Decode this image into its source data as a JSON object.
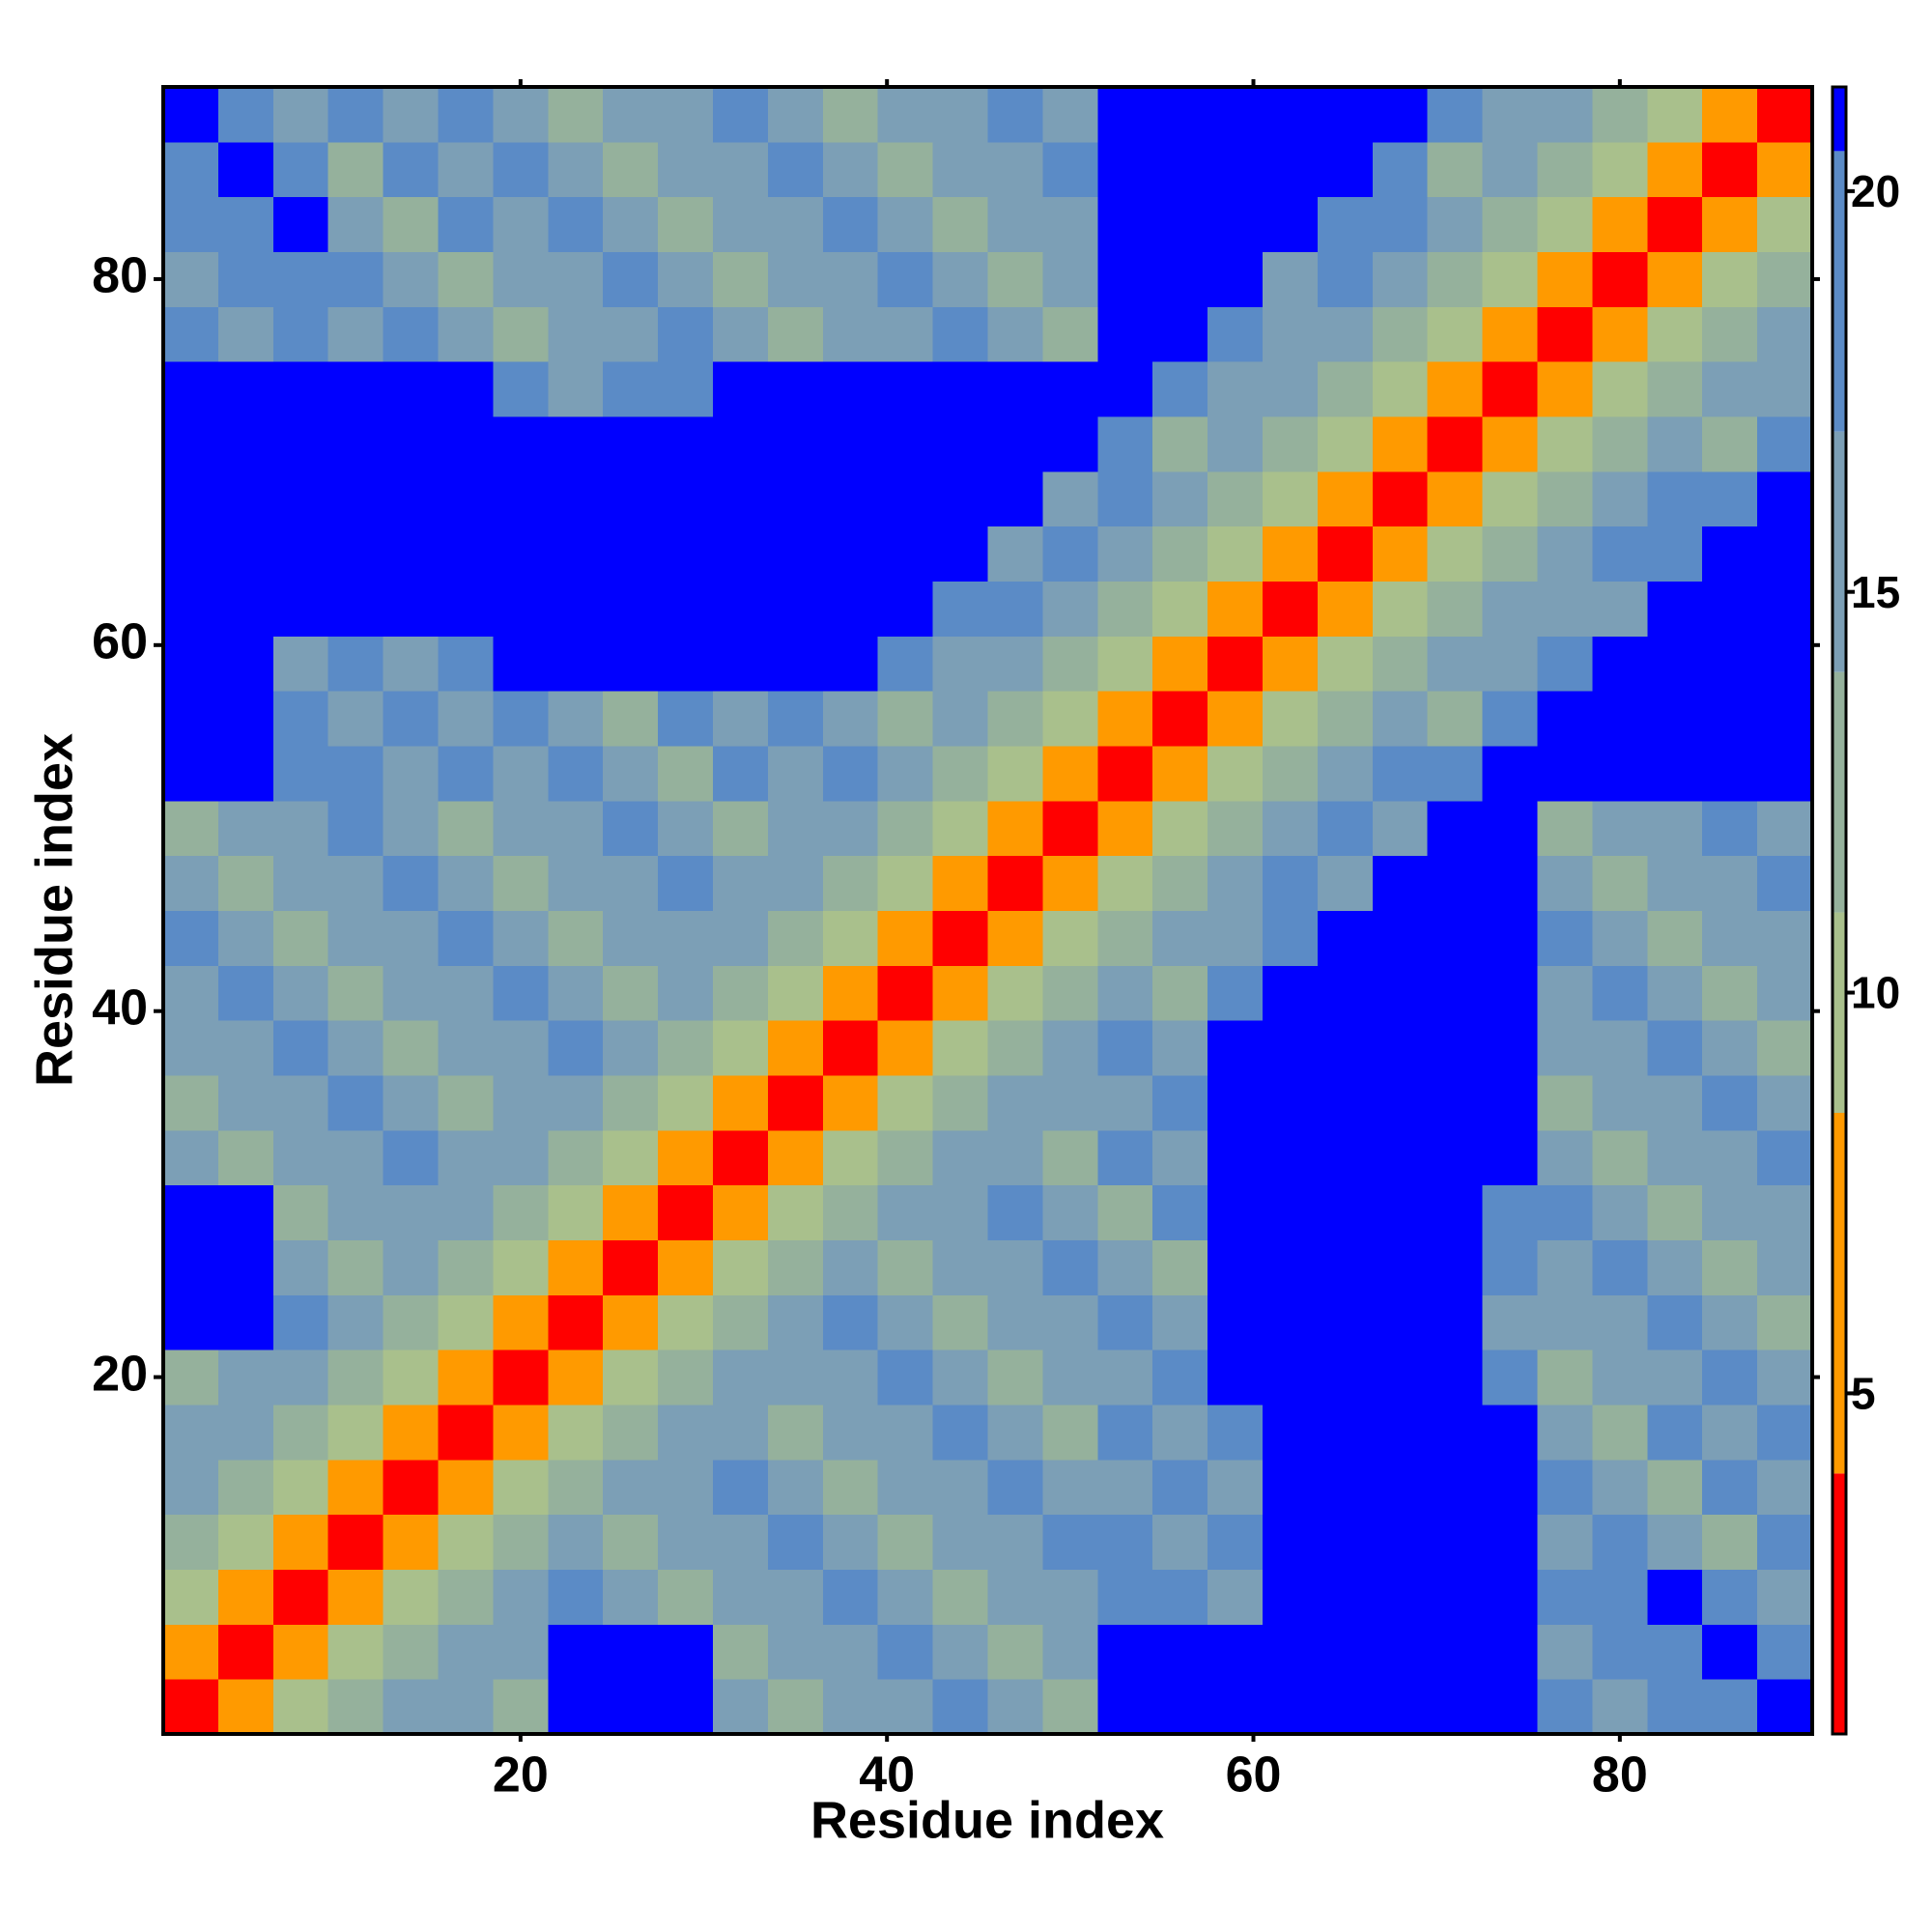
{
  "chart_data": {
    "type": "heatmap",
    "xlabel": "Residue index",
    "ylabel": "Residue index",
    "x": [
      2,
      5,
      8,
      11,
      14,
      17,
      20,
      23,
      26,
      29,
      32,
      35,
      38,
      41,
      44,
      47,
      50,
      53,
      56,
      59,
      62,
      65,
      68,
      71,
      74,
      77,
      80,
      83,
      86,
      89
    ],
    "y": [
      2,
      5,
      8,
      11,
      14,
      17,
      20,
      23,
      26,
      29,
      32,
      35,
      38,
      41,
      44,
      47,
      50,
      53,
      56,
      59,
      62,
      65,
      68,
      71,
      74,
      77,
      80,
      83,
      86,
      89
    ],
    "xlim": [
      0.5,
      90.5
    ],
    "ylim": [
      0.5,
      90.5
    ],
    "xticks": [
      20,
      40,
      60,
      80
    ],
    "yticks": [
      20,
      40,
      60,
      80
    ],
    "zlim": [
      0.75,
      21.3
    ],
    "zticks": [
      5,
      10,
      15,
      20
    ],
    "colorscale": [
      {
        "max": 4,
        "color": "#ff0000"
      },
      {
        "max": 8.5,
        "color": "#ff9a00"
      },
      {
        "max": 11,
        "color": "#a9c08c"
      },
      {
        "max": 14,
        "color": "#95b19c"
      },
      {
        "max": 17,
        "color": "#7c9fb6"
      },
      {
        "max": 20.5,
        "color": "#5b8bc6"
      },
      {
        "max": 21.3,
        "color": "#0000ff"
      }
    ],
    "z": [
      [
        2,
        6,
        9,
        12,
        14,
        15,
        12,
        21,
        21,
        21,
        15,
        12,
        16,
        14,
        17,
        15,
        12,
        21,
        21,
        21,
        21,
        21,
        21,
        21,
        21,
        19,
        16,
        20,
        18,
        21
      ],
      [
        6,
        2,
        6,
        9,
        12,
        14,
        16,
        21,
        21,
        21,
        12,
        16,
        14,
        17,
        15,
        12,
        16,
        21,
        21,
        21,
        21,
        21,
        21,
        21,
        21,
        16,
        20,
        18,
        21,
        19
      ],
      [
        9,
        6,
        2,
        6,
        9,
        12,
        14,
        17,
        15,
        12,
        16,
        14,
        17,
        15,
        12,
        16,
        14,
        19,
        17,
        14,
        21,
        21,
        21,
        21,
        21,
        20,
        18,
        21,
        19,
        16
      ],
      [
        12,
        9,
        6,
        2,
        6,
        9,
        12,
        14,
        12,
        16,
        14,
        17,
        15,
        12,
        16,
        14,
        17,
        17,
        14,
        18,
        21,
        21,
        21,
        21,
        21,
        15,
        18,
        16,
        13,
        17
      ],
      [
        14,
        12,
        9,
        6,
        2,
        6,
        9,
        12,
        14,
        14,
        17,
        15,
        12,
        16,
        14,
        17,
        15,
        14,
        18,
        16,
        21,
        21,
        21,
        21,
        21,
        18,
        16,
        13,
        17,
        15
      ],
      [
        15,
        14,
        12,
        9,
        6,
        2,
        6,
        9,
        12,
        14,
        15,
        12,
        16,
        14,
        17,
        15,
        12,
        18,
        16,
        19,
        21,
        21,
        21,
        21,
        21,
        16,
        13,
        17,
        15,
        18
      ],
      [
        12,
        16,
        14,
        12,
        9,
        6,
        2,
        6,
        9,
        12,
        14,
        16,
        14,
        17,
        15,
        12,
        16,
        15,
        18,
        21,
        21,
        21,
        21,
        21,
        18,
        12,
        16,
        14,
        17,
        15
      ],
      [
        21,
        21,
        17,
        14,
        12,
        9,
        6,
        2,
        6,
        9,
        12,
        14,
        17,
        15,
        12,
        16,
        14,
        18,
        16,
        21,
        21,
        21,
        21,
        21,
        15,
        16,
        14,
        17,
        15,
        12
      ],
      [
        21,
        21,
        15,
        12,
        14,
        12,
        9,
        6,
        2,
        6,
        9,
        12,
        14,
        12,
        16,
        14,
        17,
        16,
        13,
        21,
        21,
        21,
        21,
        21,
        19,
        14,
        17,
        15,
        12,
        16
      ],
      [
        21,
        21,
        12,
        16,
        14,
        14,
        12,
        9,
        6,
        2,
        6,
        9,
        12,
        14,
        14,
        17,
        15,
        13,
        17,
        21,
        21,
        21,
        21,
        21,
        17,
        17,
        15,
        12,
        16,
        14
      ],
      [
        15,
        12,
        16,
        14,
        17,
        15,
        14,
        12,
        9,
        6,
        2,
        6,
        9,
        12,
        14,
        15,
        12,
        17,
        15,
        21,
        21,
        21,
        21,
        21,
        21,
        15,
        12,
        16,
        14,
        17
      ],
      [
        12,
        16,
        14,
        17,
        15,
        12,
        16,
        14,
        12,
        9,
        6,
        2,
        6,
        9,
        12,
        14,
        16,
        15,
        18,
        21,
        21,
        21,
        21,
        21,
        21,
        12,
        16,
        14,
        17,
        15
      ],
      [
        16,
        14,
        17,
        15,
        12,
        16,
        14,
        17,
        14,
        12,
        9,
        6,
        2,
        6,
        9,
        12,
        14,
        18,
        16,
        21,
        21,
        21,
        21,
        21,
        21,
        16,
        14,
        17,
        15,
        12
      ],
      [
        14,
        17,
        15,
        12,
        16,
        14,
        17,
        15,
        12,
        14,
        12,
        9,
        6,
        2,
        6,
        9,
        12,
        14,
        13,
        18,
        21,
        21,
        21,
        21,
        21,
        14,
        17,
        15,
        12,
        16
      ],
      [
        17,
        15,
        12,
        16,
        14,
        17,
        15,
        12,
        16,
        14,
        14,
        12,
        9,
        6,
        2,
        6,
        9,
        12,
        14,
        16,
        19,
        21,
        21,
        21,
        21,
        17,
        15,
        12,
        16,
        14
      ],
      [
        15,
        12,
        16,
        14,
        17,
        15,
        12,
        16,
        14,
        17,
        15,
        14,
        12,
        9,
        6,
        2,
        6,
        9,
        12,
        14,
        17,
        14,
        21,
        21,
        21,
        15,
        12,
        16,
        14,
        17
      ],
      [
        12,
        16,
        14,
        17,
        15,
        12,
        16,
        14,
        17,
        15,
        12,
        16,
        14,
        12,
        9,
        6,
        2,
        6,
        9,
        12,
        14,
        18,
        16,
        21,
        21,
        12,
        16,
        14,
        17,
        15
      ],
      [
        21,
        21,
        19,
        17,
        14,
        18,
        15,
        18,
        16,
        13,
        17,
        15,
        18,
        14,
        12,
        9,
        6,
        2,
        6,
        9,
        12,
        14,
        18,
        18,
        21,
        21,
        21,
        21,
        21,
        21
      ],
      [
        21,
        21,
        17,
        14,
        18,
        16,
        18,
        16,
        13,
        17,
        15,
        18,
        16,
        13,
        14,
        12,
        9,
        6,
        2,
        6,
        9,
        12,
        14,
        13,
        19,
        21,
        21,
        21,
        21,
        21
      ],
      [
        21,
        21,
        14,
        18,
        16,
        19,
        21,
        21,
        21,
        21,
        21,
        21,
        21,
        18,
        16,
        14,
        12,
        9,
        6,
        2,
        6,
        9,
        12,
        14,
        15,
        20,
        21,
        21,
        21,
        21
      ],
      [
        21,
        21,
        21,
        21,
        21,
        21,
        21,
        21,
        21,
        21,
        21,
        21,
        21,
        21,
        19,
        17,
        14,
        12,
        9,
        6,
        2,
        6,
        9,
        12,
        14,
        16,
        15,
        21,
        21,
        21
      ],
      [
        21,
        21,
        21,
        21,
        21,
        21,
        21,
        21,
        21,
        21,
        21,
        21,
        21,
        21,
        21,
        14,
        18,
        14,
        12,
        9,
        6,
        2,
        6,
        9,
        12,
        14,
        17,
        17,
        21,
        21
      ],
      [
        21,
        21,
        21,
        21,
        21,
        21,
        21,
        21,
        21,
        21,
        21,
        21,
        21,
        21,
        21,
        21,
        16,
        18,
        14,
        12,
        9,
        6,
        2,
        6,
        9,
        12,
        14,
        18,
        18,
        21
      ],
      [
        21,
        21,
        21,
        21,
        21,
        21,
        21,
        21,
        21,
        21,
        21,
        21,
        21,
        21,
        21,
        21,
        21,
        18,
        13,
        14,
        12,
        9,
        6,
        2,
        6,
        9,
        12,
        14,
        13,
        19
      ],
      [
        21,
        21,
        21,
        21,
        21,
        21,
        18,
        15,
        19,
        17,
        21,
        21,
        21,
        21,
        21,
        21,
        21,
        21,
        19,
        15,
        14,
        12,
        9,
        6,
        2,
        6,
        9,
        12,
        14,
        15
      ],
      [
        19,
        16,
        20,
        15,
        18,
        16,
        12,
        16,
        14,
        17,
        15,
        12,
        16,
        14,
        17,
        15,
        12,
        21,
        21,
        20,
        16,
        14,
        12,
        9,
        6,
        2,
        6,
        9,
        12,
        14
      ],
      [
        16,
        20,
        18,
        18,
        16,
        13,
        16,
        14,
        17,
        15,
        12,
        16,
        14,
        17,
        15,
        12,
        16,
        21,
        21,
        21,
        15,
        17,
        14,
        12,
        9,
        6,
        2,
        6,
        9,
        12
      ],
      [
        20,
        18,
        21,
        16,
        13,
        17,
        14,
        17,
        15,
        12,
        16,
        14,
        17,
        15,
        12,
        16,
        14,
        21,
        21,
        21,
        21,
        17,
        18,
        14,
        12,
        9,
        6,
        2,
        6,
        9
      ],
      [
        18,
        21,
        19,
        13,
        17,
        15,
        17,
        15,
        12,
        16,
        14,
        17,
        15,
        12,
        16,
        14,
        17,
        21,
        21,
        21,
        21,
        21,
        18,
        13,
        14,
        12,
        9,
        6,
        2,
        6
      ],
      [
        21,
        19,
        16,
        17,
        15,
        18,
        15,
        12,
        16,
        14,
        17,
        15,
        12,
        16,
        14,
        17,
        15,
        21,
        21,
        21,
        21,
        21,
        21,
        19,
        15,
        14,
        12,
        9,
        6,
        2
      ]
    ]
  }
}
